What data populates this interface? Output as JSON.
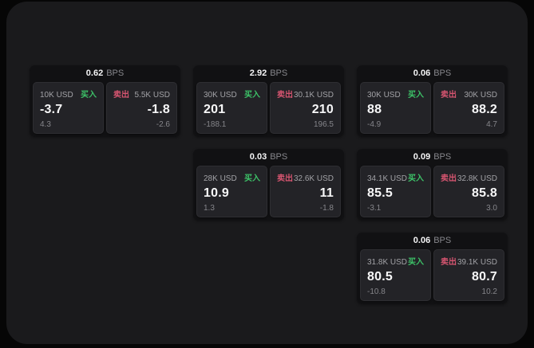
{
  "labels": {
    "bps": "BPS",
    "buy": "买入",
    "sell": "卖出"
  },
  "colors": {
    "buy_green": "#3dc268",
    "sell_red": "#d65570",
    "panel_bg": "#1a1a1c",
    "card_bg": "#111113",
    "tile_bg": "#232327"
  },
  "cards": [
    {
      "bps": "0.62",
      "buy": {
        "amount": "10K USD",
        "price": "-3.7",
        "delta": "4.3"
      },
      "sell": {
        "amount": "5.5K USD",
        "price": "-1.8",
        "delta": "-2.6"
      }
    },
    {
      "bps": "2.92",
      "buy": {
        "amount": "30K USD",
        "price": "201",
        "delta": "-188.1"
      },
      "sell": {
        "amount": "30.1K USD",
        "price": "210",
        "delta": "196.5"
      }
    },
    {
      "bps": "0.06",
      "buy": {
        "amount": "30K USD",
        "price": "88",
        "delta": "-4.9"
      },
      "sell": {
        "amount": "30K USD",
        "price": "88.2",
        "delta": "4.7"
      }
    },
    {
      "bps": "0.03",
      "buy": {
        "amount": "28K USD",
        "price": "10.9",
        "delta": "1.3"
      },
      "sell": {
        "amount": "32.6K USD",
        "price": "11",
        "delta": "-1.8"
      }
    },
    {
      "bps": "0.09",
      "buy": {
        "amount": "34.1K USD",
        "price": "85.5",
        "delta": "-3.1"
      },
      "sell": {
        "amount": "32.8K USD",
        "price": "85.8",
        "delta": "3.0"
      }
    },
    {
      "bps": "0.06",
      "buy": {
        "amount": "31.8K USD",
        "price": "80.5",
        "delta": "-10.8"
      },
      "sell": {
        "amount": "39.1K USD",
        "price": "80.7",
        "delta": "10.2"
      }
    }
  ]
}
